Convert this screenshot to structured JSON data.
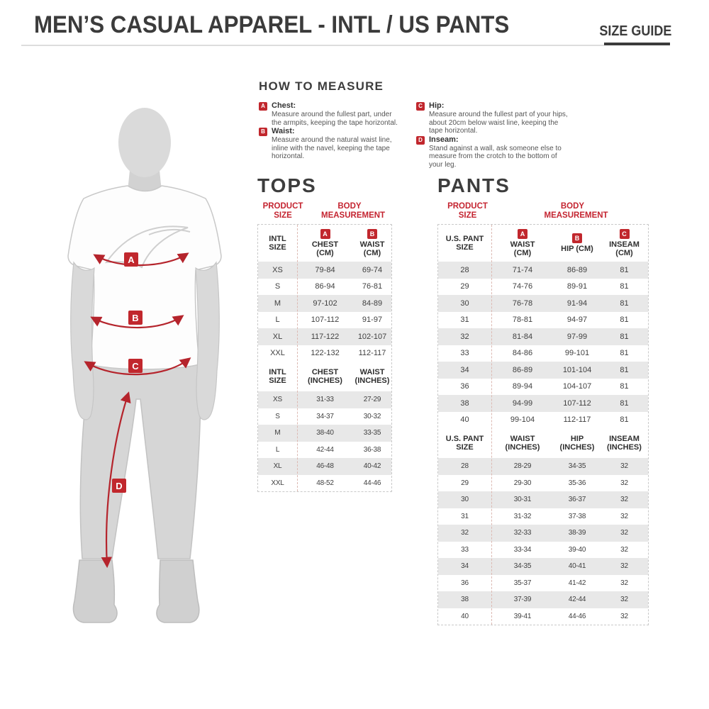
{
  "colors": {
    "accent_red": "#c1272d",
    "line_red": "#b5242c",
    "row_gray": "#e8e8e8",
    "title_dark": "#3b3b3b"
  },
  "header": {
    "title": "MEN’S CASUAL APPAREL - INTL / US PANTS",
    "size_guide_label": "SIZE GUIDE"
  },
  "how_to_measure": {
    "title": "HOW TO MEASURE",
    "items": [
      {
        "key": "A",
        "label": "Chest:",
        "text": "Measure around the fullest part, under the armpits, keeping the tape horizontal."
      },
      {
        "key": "B",
        "label": "Waist:",
        "text": "Measure around the natural waist line, inline with the navel, keeping the tape horizontal."
      },
      {
        "key": "C",
        "label": "Hip:",
        "text": "Measure around the fullest part of your hips, about 20cm below waist line, keeping the tape horizontal."
      },
      {
        "key": "D",
        "label": "Inseam:",
        "text": "Stand against a wall, ask someone else to measure from the crotch to the bottom of your leg."
      }
    ]
  },
  "figure": {
    "marker_labels": [
      "A",
      "B",
      "C",
      "D"
    ]
  },
  "tops": {
    "title": "TOPS",
    "product_size_header": "PRODUCT SIZE",
    "body_measurement_header": "BODY MEASUREMENT",
    "cm": {
      "size_header": "INTL SIZE",
      "columns": [
        {
          "badge": "A",
          "label": "CHEST (CM)"
        },
        {
          "badge": "B",
          "label": "WAIST (CM)"
        }
      ],
      "rows": [
        [
          "XS",
          "79-84",
          "69-74"
        ],
        [
          "S",
          "86-94",
          "76-81"
        ],
        [
          "M",
          "97-102",
          "84-89"
        ],
        [
          "L",
          "107-112",
          "91-97"
        ],
        [
          "XL",
          "117-122",
          "102-107"
        ],
        [
          "XXL",
          "122-132",
          "112-117"
        ]
      ]
    },
    "inches": {
      "size_header": "INTL SIZE",
      "columns": [
        {
          "label": "CHEST (INCHES)"
        },
        {
          "label": "WAIST (INCHES)"
        }
      ],
      "rows": [
        [
          "XS",
          "31-33",
          "27-29"
        ],
        [
          "S",
          "34-37",
          "30-32"
        ],
        [
          "M",
          "38-40",
          "33-35"
        ],
        [
          "L",
          "42-44",
          "36-38"
        ],
        [
          "XL",
          "46-48",
          "40-42"
        ],
        [
          "XXL",
          "48-52",
          "44-46"
        ]
      ]
    }
  },
  "pants": {
    "title": "PANTS",
    "product_size_header": "PRODUCT SIZE",
    "body_measurement_header": "BODY MEASUREMENT",
    "cm": {
      "size_header": "U.S. PANT SIZE",
      "columns": [
        {
          "badge": "A",
          "label": "WAIST (CM)"
        },
        {
          "badge": "B",
          "label": "HIP (CM)"
        },
        {
          "badge": "C",
          "label": "INSEAM (CM)"
        }
      ],
      "rows": [
        [
          "28",
          "71-74",
          "86-89",
          "81"
        ],
        [
          "29",
          "74-76",
          "89-91",
          "81"
        ],
        [
          "30",
          "76-78",
          "91-94",
          "81"
        ],
        [
          "31",
          "78-81",
          "94-97",
          "81"
        ],
        [
          "32",
          "81-84",
          "97-99",
          "81"
        ],
        [
          "33",
          "84-86",
          "99-101",
          "81"
        ],
        [
          "34",
          "86-89",
          "101-104",
          "81"
        ],
        [
          "36",
          "89-94",
          "104-107",
          "81"
        ],
        [
          "38",
          "94-99",
          "107-112",
          "81"
        ],
        [
          "40",
          "99-104",
          "112-117",
          "81"
        ]
      ]
    },
    "inches": {
      "size_header": "U.S. PANT SIZE",
      "columns": [
        {
          "label": "WAIST (INCHES)"
        },
        {
          "label": "HIP (INCHES)"
        },
        {
          "label": "INSEAM (INCHES)"
        }
      ],
      "rows": [
        [
          "28",
          "28-29",
          "34-35",
          "32"
        ],
        [
          "29",
          "29-30",
          "35-36",
          "32"
        ],
        [
          "30",
          "30-31",
          "36-37",
          "32"
        ],
        [
          "31",
          "31-32",
          "37-38",
          "32"
        ],
        [
          "32",
          "32-33",
          "38-39",
          "32"
        ],
        [
          "33",
          "33-34",
          "39-40",
          "32"
        ],
        [
          "34",
          "34-35",
          "40-41",
          "32"
        ],
        [
          "36",
          "35-37",
          "41-42",
          "32"
        ],
        [
          "38",
          "37-39",
          "42-44",
          "32"
        ],
        [
          "40",
          "39-41",
          "44-46",
          "32"
        ]
      ]
    }
  }
}
